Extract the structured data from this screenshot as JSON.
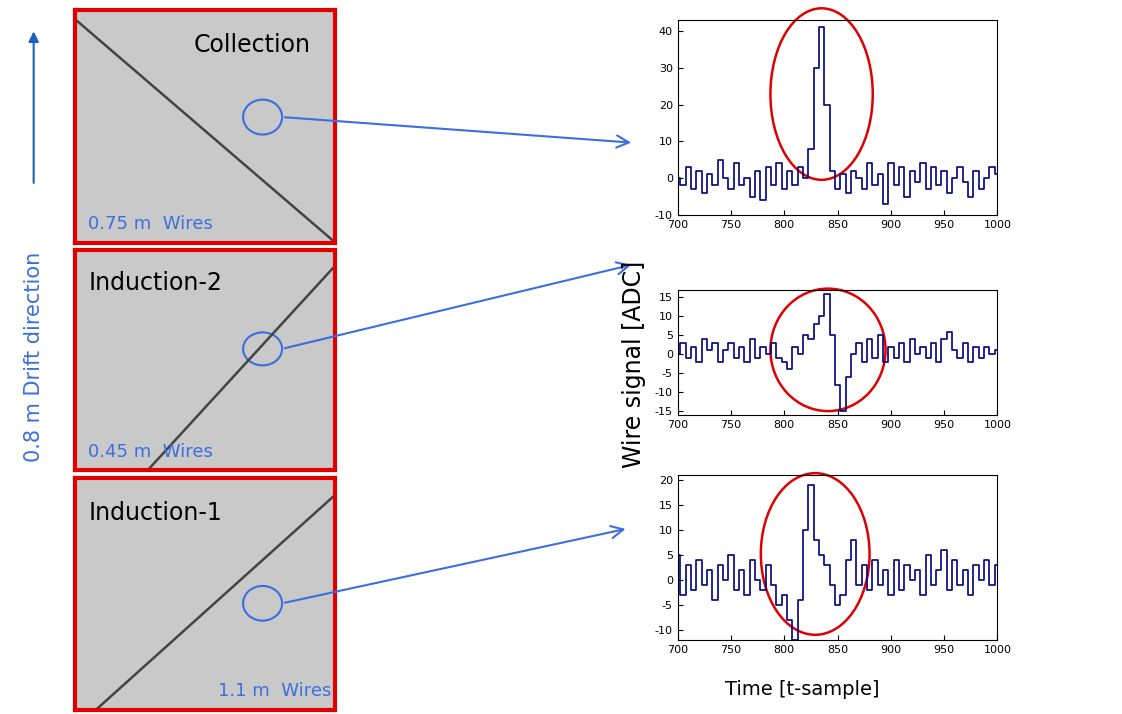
{
  "chart_data": [
    {
      "type": "line",
      "color": "#00007f",
      "x": [
        700,
        705,
        710,
        715,
        720,
        725,
        730,
        735,
        740,
        745,
        750,
        755,
        760,
        765,
        770,
        775,
        780,
        785,
        790,
        795,
        800,
        805,
        810,
        815,
        820,
        825,
        830,
        835,
        840,
        845,
        850,
        855,
        860,
        865,
        870,
        875,
        880,
        885,
        890,
        895,
        900,
        905,
        910,
        915,
        920,
        925,
        930,
        935,
        940,
        945,
        950,
        955,
        960,
        965,
        970,
        975,
        980,
        985,
        990,
        995,
        1000
      ],
      "values": [
        0,
        -2,
        3,
        -3,
        2,
        -4,
        1,
        -2,
        5,
        0,
        -3,
        4,
        -2,
        0,
        -5,
        2,
        -6,
        3,
        -2,
        4,
        -3,
        2,
        -2,
        3,
        0,
        8,
        30,
        41,
        20,
        2,
        -3,
        1,
        -4,
        2,
        0,
        -3,
        4,
        -2,
        1,
        -7,
        4,
        -2,
        3,
        -5,
        2,
        -1,
        4,
        -3,
        3,
        -2,
        2,
        -4,
        0,
        3,
        -1,
        -5,
        2,
        -3,
        0,
        3,
        1
      ],
      "xlim": [
        700,
        1000
      ],
      "xticks": [
        700,
        750,
        800,
        850,
        900,
        950,
        1000
      ],
      "ylim": [
        -10,
        43
      ],
      "yticks": [
        -10,
        0,
        10,
        20,
        30,
        40
      ]
    },
    {
      "type": "line",
      "color": "#00007f",
      "x": [
        700,
        705,
        710,
        715,
        720,
        725,
        730,
        735,
        740,
        745,
        750,
        755,
        760,
        765,
        770,
        775,
        780,
        785,
        790,
        795,
        800,
        805,
        810,
        815,
        820,
        825,
        830,
        835,
        840,
        845,
        850,
        855,
        860,
        865,
        870,
        875,
        880,
        885,
        890,
        895,
        900,
        905,
        910,
        915,
        920,
        925,
        930,
        935,
        940,
        945,
        950,
        955,
        960,
        965,
        970,
        975,
        980,
        985,
        990,
        995,
        1000
      ],
      "values": [
        0,
        3,
        -1,
        2,
        -2,
        4,
        1,
        3,
        -2,
        1,
        3,
        -1,
        2,
        -2,
        4,
        -1,
        2,
        0,
        3,
        -1,
        -2,
        -4,
        2,
        0,
        5,
        4,
        8,
        10,
        16,
        5,
        -8,
        -15,
        -6,
        0,
        3,
        -2,
        4,
        -1,
        5,
        -2,
        2,
        -1,
        3,
        -2,
        4,
        0,
        2,
        -1,
        3,
        -2,
        4,
        6,
        1,
        -1,
        3,
        -2,
        2,
        -1,
        2,
        0,
        1
      ],
      "xlim": [
        700,
        1000
      ],
      "xticks": [
        700,
        750,
        800,
        850,
        900,
        950,
        1000
      ],
      "ylim": [
        -16,
        17
      ],
      "yticks": [
        -15,
        -10,
        -5,
        0,
        5,
        10,
        15
      ]
    },
    {
      "type": "line",
      "color": "#00007f",
      "x": [
        700,
        705,
        710,
        715,
        720,
        725,
        730,
        735,
        740,
        745,
        750,
        755,
        760,
        765,
        770,
        775,
        780,
        785,
        790,
        795,
        800,
        805,
        810,
        815,
        820,
        825,
        830,
        835,
        840,
        845,
        850,
        855,
        860,
        865,
        870,
        875,
        880,
        885,
        890,
        895,
        900,
        905,
        910,
        915,
        920,
        925,
        930,
        935,
        940,
        945,
        950,
        955,
        960,
        965,
        970,
        975,
        980,
        985,
        990,
        995,
        1000
      ],
      "values": [
        5,
        -3,
        3,
        -2,
        4,
        -1,
        2,
        -4,
        3,
        0,
        5,
        -2,
        2,
        -3,
        4,
        0,
        -2,
        3,
        -1,
        -5,
        -3,
        -8,
        -12,
        -4,
        10,
        19,
        8,
        5,
        3,
        -1,
        -5,
        -3,
        4,
        8,
        -1,
        3,
        -2,
        4,
        -1,
        2,
        -3,
        4,
        -2,
        3,
        0,
        2,
        -3,
        5,
        -1,
        2,
        6,
        -2,
        4,
        -1,
        2,
        -3,
        3,
        0,
        4,
        -1,
        3
      ],
      "xlim": [
        700,
        1000
      ],
      "xticks": [
        700,
        750,
        800,
        850,
        900,
        950,
        1000
      ],
      "ylim": [
        -12,
        21
      ],
      "yticks": [
        -10,
        -5,
        0,
        5,
        10,
        15,
        20
      ]
    }
  ],
  "diagram": {
    "panels": [
      {
        "name": "Collection",
        "wires": "0.75 m  Wires"
      },
      {
        "name": "Induction-2",
        "wires": "0.45 m  Wires"
      },
      {
        "name": "Induction-1",
        "wires": "1.1 m  Wires"
      }
    ],
    "drift_label": "0.8 m Drift direction",
    "y_label": "Wire signal [ADC]",
    "x_label": "Time [t-sample]"
  }
}
